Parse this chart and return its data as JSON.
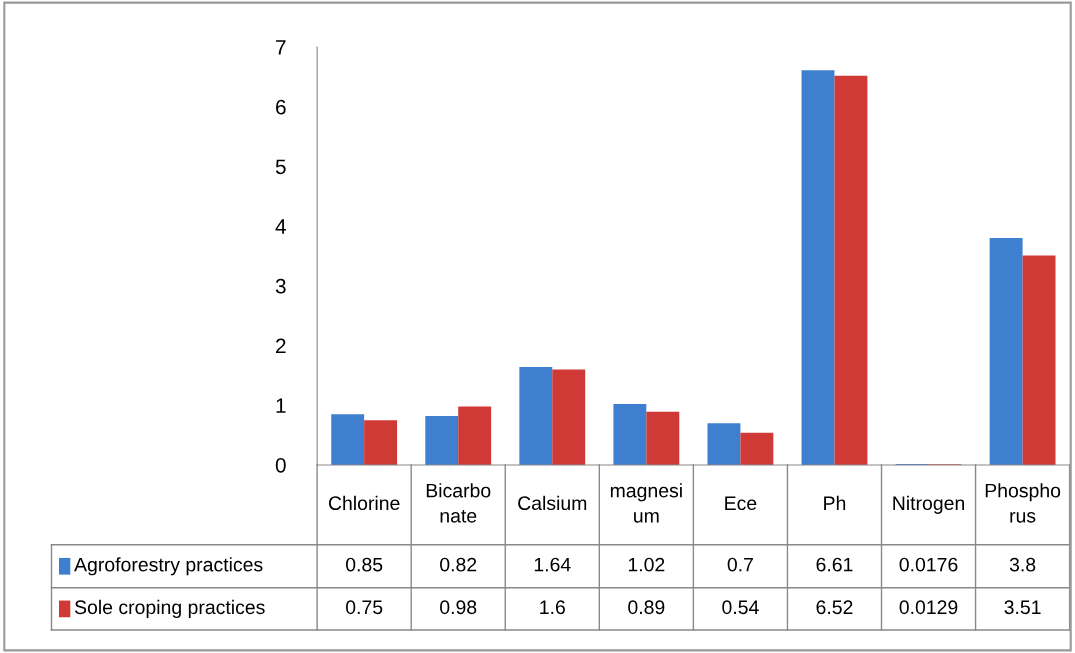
{
  "chart_data": {
    "type": "bar",
    "categories": [
      "Chlorine",
      "Bicarbonate",
      "Calsium",
      "magnesium",
      "Ece",
      "Ph",
      "Nitrogen",
      "Phosphorus"
    ],
    "series": [
      {
        "name": "Agroforestry practices",
        "color": "#3f7fd0",
        "values": [
          0.85,
          0.82,
          1.64,
          1.02,
          0.7,
          6.61,
          0.0176,
          3.8
        ]
      },
      {
        "name": "Sole croping practices",
        "color": "#cf3a36",
        "values": [
          0.75,
          0.98,
          1.6,
          0.89,
          0.54,
          6.52,
          0.0129,
          3.51
        ]
      }
    ],
    "ylim": [
      0,
      7
    ],
    "yticks": [
      0,
      1,
      2,
      3,
      4,
      5,
      6,
      7
    ],
    "grid": false,
    "data_labels": true,
    "legend": "bottom left"
  }
}
